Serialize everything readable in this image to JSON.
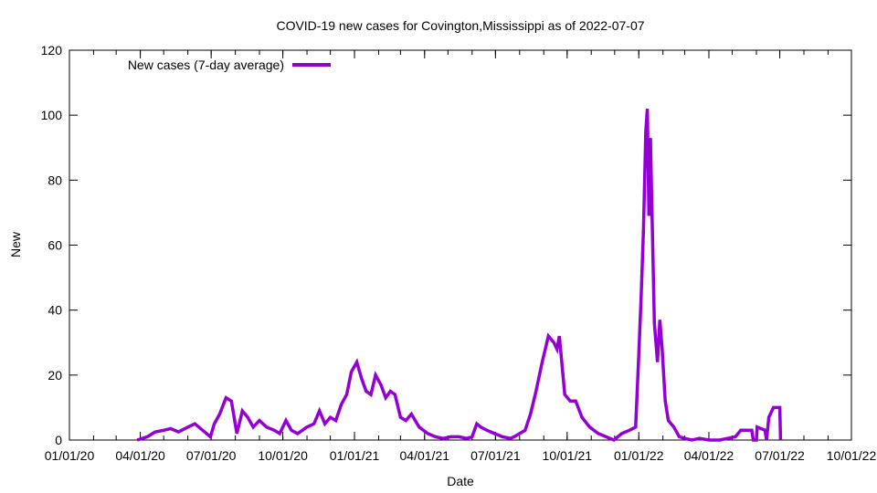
{
  "chart_data": {
    "type": "line",
    "title": "COVID-19 new cases for Covington,Mississippi as of 2022-07-07",
    "xlabel": "Date",
    "ylabel": "New",
    "xlim": [
      "2020-01-01",
      "2022-10-01"
    ],
    "ylim": [
      0,
      120
    ],
    "yticks": [
      0,
      20,
      40,
      60,
      80,
      100,
      120
    ],
    "xticks": [
      "2020-01-01",
      "2020-04-01",
      "2020-07-01",
      "2020-10-01",
      "2021-01-01",
      "2021-04-01",
      "2021-07-01",
      "2021-10-01",
      "2022-01-01",
      "2022-04-01",
      "2022-07-01",
      "2022-10-01"
    ],
    "xtick_labels": [
      "01/01/20",
      "04/01/20",
      "07/01/20",
      "10/01/20",
      "01/01/21",
      "04/01/21",
      "07/01/21",
      "10/01/21",
      "01/01/22",
      "04/01/22",
      "07/01/22",
      "10/01/22"
    ],
    "grid": false,
    "legend_position": "top-left",
    "series": [
      {
        "name": "New cases (7-day average)",
        "color": "#9400d3",
        "points": [
          [
            "2020-03-28",
            0
          ],
          [
            "2020-04-10",
            1
          ],
          [
            "2020-04-20",
            2.5
          ],
          [
            "2020-05-01",
            3
          ],
          [
            "2020-05-10",
            3.5
          ],
          [
            "2020-05-20",
            2.5
          ],
          [
            "2020-06-01",
            4
          ],
          [
            "2020-06-10",
            5
          ],
          [
            "2020-06-20",
            3
          ],
          [
            "2020-06-30",
            1
          ],
          [
            "2020-07-05",
            5
          ],
          [
            "2020-07-12",
            8
          ],
          [
            "2020-07-20",
            13
          ],
          [
            "2020-07-27",
            12
          ],
          [
            "2020-08-03",
            2
          ],
          [
            "2020-08-10",
            9
          ],
          [
            "2020-08-17",
            7
          ],
          [
            "2020-08-24",
            4
          ],
          [
            "2020-09-01",
            6
          ],
          [
            "2020-09-10",
            4
          ],
          [
            "2020-09-20",
            3
          ],
          [
            "2020-09-27",
            2
          ],
          [
            "2020-10-05",
            6
          ],
          [
            "2020-10-12",
            3
          ],
          [
            "2020-10-20",
            2
          ],
          [
            "2020-11-01",
            4
          ],
          [
            "2020-11-10",
            5
          ],
          [
            "2020-11-17",
            9
          ],
          [
            "2020-11-24",
            5
          ],
          [
            "2020-12-01",
            7
          ],
          [
            "2020-12-08",
            6
          ],
          [
            "2020-12-15",
            11
          ],
          [
            "2020-12-22",
            14
          ],
          [
            "2020-12-28",
            21
          ],
          [
            "2021-01-04",
            24
          ],
          [
            "2021-01-10",
            19
          ],
          [
            "2021-01-16",
            15
          ],
          [
            "2021-01-22",
            14
          ],
          [
            "2021-01-28",
            20
          ],
          [
            "2021-02-04",
            17
          ],
          [
            "2021-02-10",
            13
          ],
          [
            "2021-02-16",
            15
          ],
          [
            "2021-02-22",
            14
          ],
          [
            "2021-03-01",
            7
          ],
          [
            "2021-03-08",
            6
          ],
          [
            "2021-03-15",
            8
          ],
          [
            "2021-03-25",
            4
          ],
          [
            "2021-04-05",
            2
          ],
          [
            "2021-04-15",
            1
          ],
          [
            "2021-04-25",
            0.5
          ],
          [
            "2021-05-05",
            1
          ],
          [
            "2021-05-15",
            1
          ],
          [
            "2021-05-25",
            0.5
          ],
          [
            "2021-06-01",
            1
          ],
          [
            "2021-06-07",
            5
          ],
          [
            "2021-06-12",
            4
          ],
          [
            "2021-06-20",
            3
          ],
          [
            "2021-06-30",
            2
          ],
          [
            "2021-07-10",
            1
          ],
          [
            "2021-07-20",
            0.5
          ],
          [
            "2021-07-25",
            1
          ],
          [
            "2021-08-01",
            2
          ],
          [
            "2021-08-08",
            3
          ],
          [
            "2021-08-15",
            8
          ],
          [
            "2021-08-22",
            15
          ],
          [
            "2021-08-30",
            24
          ],
          [
            "2021-09-07",
            32
          ],
          [
            "2021-09-14",
            30
          ],
          [
            "2021-09-18",
            28
          ],
          [
            "2021-09-21",
            32
          ],
          [
            "2021-09-28",
            14
          ],
          [
            "2021-10-05",
            12
          ],
          [
            "2021-10-12",
            12
          ],
          [
            "2021-10-20",
            7
          ],
          [
            "2021-10-30",
            4
          ],
          [
            "2021-11-10",
            2
          ],
          [
            "2021-11-20",
            1
          ],
          [
            "2021-11-30",
            0
          ],
          [
            "2021-12-10",
            2
          ],
          [
            "2021-12-20",
            3
          ],
          [
            "2021-12-28",
            4
          ],
          [
            "2022-01-01",
            26
          ],
          [
            "2022-01-04",
            44
          ],
          [
            "2022-01-07",
            65
          ],
          [
            "2022-01-10",
            95
          ],
          [
            "2022-01-12",
            102
          ],
          [
            "2022-01-14",
            69
          ],
          [
            "2022-01-16",
            93
          ],
          [
            "2022-01-18",
            70
          ],
          [
            "2022-01-21",
            36
          ],
          [
            "2022-01-25",
            24
          ],
          [
            "2022-01-28",
            37
          ],
          [
            "2022-01-31",
            28
          ],
          [
            "2022-02-04",
            12
          ],
          [
            "2022-02-08",
            6
          ],
          [
            "2022-02-15",
            4
          ],
          [
            "2022-02-22",
            1
          ],
          [
            "2022-03-01",
            0.5
          ],
          [
            "2022-03-10",
            0
          ],
          [
            "2022-03-20",
            0.5
          ],
          [
            "2022-04-01",
            0
          ],
          [
            "2022-04-15",
            0
          ],
          [
            "2022-04-25",
            0.5
          ],
          [
            "2022-05-05",
            1
          ],
          [
            "2022-05-12",
            3
          ],
          [
            "2022-05-26",
            3
          ],
          [
            "2022-05-28",
            0
          ],
          [
            "2022-06-01",
            0
          ],
          [
            "2022-06-02",
            4
          ],
          [
            "2022-06-12",
            3
          ],
          [
            "2022-06-14",
            0
          ],
          [
            "2022-06-17",
            7
          ],
          [
            "2022-06-23",
            10
          ],
          [
            "2022-07-01",
            10
          ],
          [
            "2022-07-02",
            0
          ]
        ]
      }
    ]
  }
}
